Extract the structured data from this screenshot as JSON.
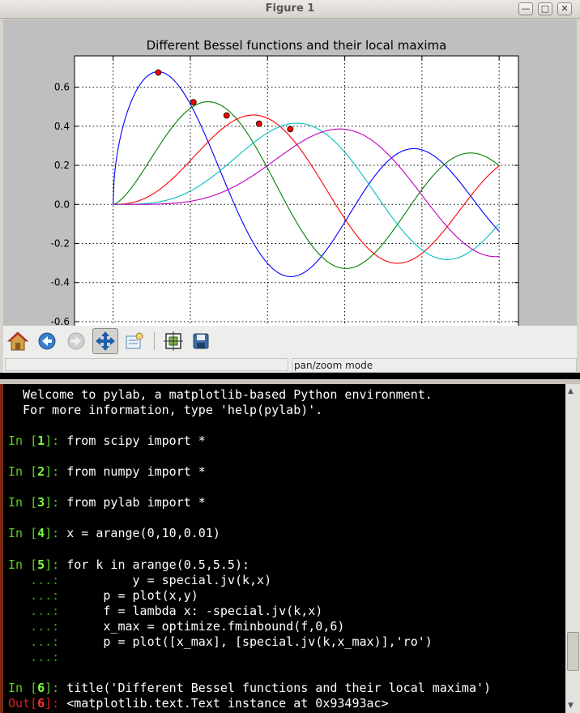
{
  "window": {
    "title": "Figure 1",
    "minimize_glyph": "—",
    "maximize_glyph": "□",
    "close_glyph": "✕"
  },
  "toolbar": {
    "buttons": [
      {
        "icon": "home-icon",
        "label": "Home"
      },
      {
        "icon": "back-arrow-icon",
        "label": "Back"
      },
      {
        "icon": "forward-arrow-icon",
        "label": "Forward"
      },
      {
        "icon": "pan-move-icon",
        "label": "Pan"
      },
      {
        "icon": "zoom-rect-icon",
        "label": "Zoom"
      },
      {
        "icon": "subplots-icon",
        "label": "Subplots"
      },
      {
        "icon": "save-floppy-icon",
        "label": "Save"
      }
    ]
  },
  "status": {
    "mode_text": "pan/zoom mode"
  },
  "chart_data": {
    "type": "line",
    "title": "Different Bessel functions and their local maxima",
    "xlabel": "",
    "ylabel": "",
    "xlim": [
      -1,
      10.5
    ],
    "ylim": [
      -0.65,
      0.76
    ],
    "yticks": [
      "0.6",
      "0.4",
      "0.2",
      "0.0",
      "-0.2",
      "-0.4",
      "-0.6"
    ],
    "ytick_values": [
      0.6,
      0.4,
      0.2,
      0.0,
      -0.2,
      -0.4,
      -0.6
    ],
    "xgrid": [
      0,
      2,
      4,
      6,
      8,
      10
    ],
    "grid": true,
    "x_range": [
      0,
      10
    ],
    "series": [
      {
        "order": 0.5,
        "color": "#0000ff",
        "x_max": 1.17,
        "y_max": 0.675
      },
      {
        "order": 1.5,
        "color": "#008000",
        "x_max": 2.08,
        "y_max": 0.523
      },
      {
        "order": 2.5,
        "color": "#ff0000",
        "x_max": 2.94,
        "y_max": 0.455
      },
      {
        "order": 3.5,
        "color": "#00bfbf",
        "x_max": 3.78,
        "y_max": 0.413
      },
      {
        "order": 4.5,
        "color": "#bf00bf",
        "x_max": 4.59,
        "y_max": 0.385
      }
    ],
    "marker_color": "#ff0000"
  },
  "terminal": {
    "lines": [
      {
        "type": "text",
        "text": "  Welcome to pylab, a matplotlib-based Python environment."
      },
      {
        "type": "text",
        "text": "  For more information, type 'help(pylab)'."
      },
      {
        "type": "blank"
      },
      {
        "type": "in",
        "prompt_pre": "In [",
        "num": "1",
        "prompt_post": "]: ",
        "code": "from scipy import *"
      },
      {
        "type": "blank"
      },
      {
        "type": "in",
        "prompt_pre": "In [",
        "num": "2",
        "prompt_post": "]: ",
        "code": "from numpy import *"
      },
      {
        "type": "blank"
      },
      {
        "type": "in",
        "prompt_pre": "In [",
        "num": "3",
        "prompt_post": "]: ",
        "code": "from pylab import *"
      },
      {
        "type": "blank"
      },
      {
        "type": "in",
        "prompt_pre": "In [",
        "num": "4",
        "prompt_post": "]: ",
        "code": "x = arange(0,10,0.01)"
      },
      {
        "type": "blank"
      },
      {
        "type": "in",
        "prompt_pre": "In [",
        "num": "5",
        "prompt_post": "]: ",
        "code": "for k in arange(0.5,5.5):"
      },
      {
        "type": "cont",
        "prompt": "   ...: ",
        "code": "         y = special.jv(k,x)"
      },
      {
        "type": "cont",
        "prompt": "   ...: ",
        "code": "     p = plot(x,y)"
      },
      {
        "type": "cont",
        "prompt": "   ...: ",
        "code": "     f = lambda x: -special.jv(k,x)"
      },
      {
        "type": "cont",
        "prompt": "   ...: ",
        "code": "     x_max = optimize.fminbound(f,0,6)"
      },
      {
        "type": "cont",
        "prompt": "   ...: ",
        "code": "     p = plot([x_max], [special.jv(k,x_max)],'ro')"
      },
      {
        "type": "cont",
        "prompt": "   ...: ",
        "code": ""
      },
      {
        "type": "blank"
      },
      {
        "type": "in",
        "prompt_pre": "In [",
        "num": "6",
        "prompt_post": "]: ",
        "code": "title('Different Bessel functions and their local maxima')"
      },
      {
        "type": "out",
        "prompt_pre": "Out[",
        "num": "6",
        "prompt_post": "]: ",
        "code": "<matplotlib.text.Text instance at 0x93493ac>"
      }
    ]
  }
}
